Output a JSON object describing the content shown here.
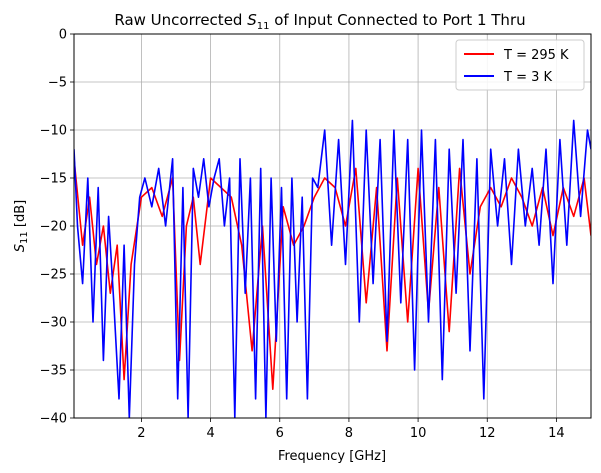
{
  "chart_data": {
    "type": "line",
    "title": "Raw Uncorrected S11 of Input Connected to Port 1 Thru",
    "title_parts": {
      "pre": "Raw Uncorrected ",
      "sym": "S",
      "sub": "11",
      "post": " of Input Connected to Port 1 Thru"
    },
    "xlabel": "Frequency [GHz]",
    "ylabel": "S11 [dB]",
    "ylabel_parts": {
      "sym": "S",
      "sub": "11",
      "post": " [dB]"
    },
    "xlim": [
      0.05,
      15.0
    ],
    "ylim": [
      -40,
      0
    ],
    "xticks": [
      2,
      4,
      6,
      8,
      10,
      12,
      14
    ],
    "yticks": [
      0,
      -5,
      -10,
      -15,
      -20,
      -25,
      -30,
      -35,
      -40
    ],
    "xtick_labels": [
      "2",
      "4",
      "6",
      "8",
      "10",
      "12",
      "14"
    ],
    "ytick_labels": [
      "0",
      "−5",
      "−10",
      "−15",
      "−20",
      "−25",
      "−30",
      "−35",
      "−40"
    ],
    "grid": true,
    "legend_position": "top-right",
    "series": [
      {
        "name": "T = 295 K",
        "color": "#ff0000",
        "x": [
          0.05,
          0.3,
          0.5,
          0.7,
          0.9,
          1.1,
          1.3,
          1.5,
          1.7,
          2.0,
          2.3,
          2.6,
          2.9,
          3.1,
          3.3,
          3.5,
          3.7,
          4.0,
          4.3,
          4.6,
          4.9,
          5.2,
          5.5,
          5.8,
          6.1,
          6.4,
          6.7,
          7.0,
          7.3,
          7.6,
          7.9,
          8.2,
          8.5,
          8.8,
          9.1,
          9.4,
          9.7,
          10.0,
          10.3,
          10.6,
          10.9,
          11.2,
          11.5,
          11.8,
          12.1,
          12.4,
          12.7,
          13.0,
          13.3,
          13.6,
          13.9,
          14.2,
          14.5,
          14.8,
          15.0
        ],
        "y": [
          -13,
          -22,
          -17,
          -24,
          -20,
          -27,
          -22,
          -36,
          -24,
          -17,
          -16,
          -19,
          -15,
          -34,
          -20,
          -17,
          -24,
          -15,
          -16,
          -17,
          -22,
          -33,
          -20,
          -37,
          -18,
          -22,
          -20,
          -17,
          -15,
          -16,
          -20,
          -14,
          -28,
          -16,
          -33,
          -15,
          -30,
          -14,
          -29,
          -16,
          -31,
          -14,
          -25,
          -18,
          -16,
          -18,
          -15,
          -17,
          -20,
          -16,
          -21,
          -16,
          -19,
          -15,
          -21
        ]
      },
      {
        "name": "T = 3 K",
        "color": "#0000ff",
        "x": [
          0.05,
          0.15,
          0.3,
          0.45,
          0.6,
          0.75,
          0.9,
          1.05,
          1.2,
          1.35,
          1.5,
          1.65,
          1.8,
          1.95,
          2.1,
          2.3,
          2.5,
          2.7,
          2.9,
          3.05,
          3.2,
          3.35,
          3.5,
          3.65,
          3.8,
          3.95,
          4.1,
          4.25,
          4.4,
          4.55,
          4.7,
          4.85,
          5.0,
          5.15,
          5.3,
          5.45,
          5.6,
          5.75,
          5.9,
          6.05,
          6.2,
          6.35,
          6.5,
          6.65,
          6.8,
          6.95,
          7.1,
          7.3,
          7.5,
          7.7,
          7.9,
          8.1,
          8.3,
          8.5,
          8.7,
          8.9,
          9.1,
          9.3,
          9.5,
          9.7,
          9.9,
          10.1,
          10.3,
          10.5,
          10.7,
          10.9,
          11.1,
          11.3,
          11.5,
          11.7,
          11.9,
          12.1,
          12.3,
          12.5,
          12.7,
          12.9,
          13.1,
          13.3,
          13.5,
          13.7,
          13.9,
          14.1,
          14.3,
          14.5,
          14.7,
          14.9,
          15.0
        ],
        "y": [
          -12,
          -20,
          -26,
          -15,
          -30,
          -16,
          -34,
          -19,
          -28,
          -38,
          -22,
          -40,
          -24,
          -17,
          -15,
          -18,
          -14,
          -20,
          -13,
          -38,
          -16,
          -40,
          -14,
          -17,
          -13,
          -18,
          -15,
          -13,
          -20,
          -15,
          -40,
          -13,
          -27,
          -15,
          -38,
          -14,
          -40,
          -15,
          -32,
          -16,
          -38,
          -15,
          -30,
          -17,
          -38,
          -15,
          -16,
          -10,
          -22,
          -11,
          -24,
          -9,
          -30,
          -10,
          -26,
          -11,
          -32,
          -10,
          -28,
          -11,
          -35,
          -10,
          -30,
          -11,
          -36,
          -12,
          -27,
          -11,
          -33,
          -13,
          -38,
          -12,
          -20,
          -13,
          -24,
          -12,
          -20,
          -14,
          -22,
          -12,
          -26,
          -11,
          -22,
          -9,
          -19,
          -10,
          -12
        ]
      }
    ]
  }
}
